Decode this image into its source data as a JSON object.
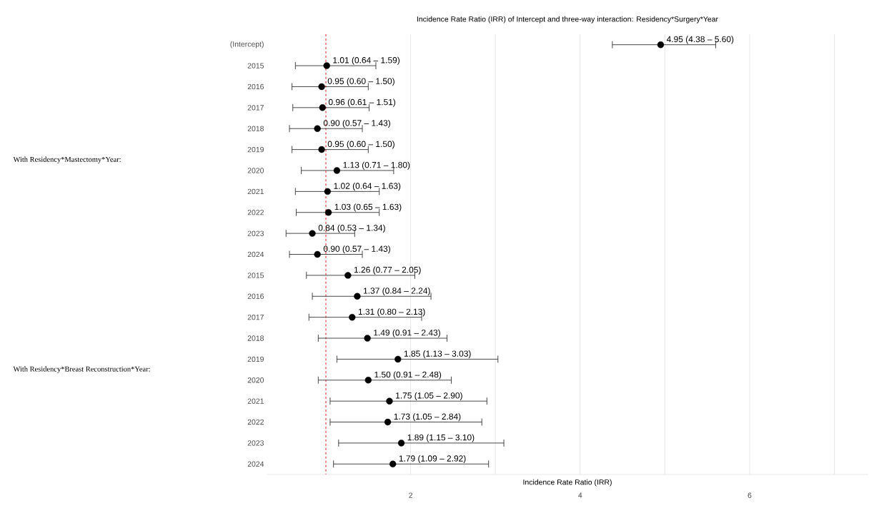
{
  "chart_data": {
    "type": "scatter",
    "orientation": "horizontal",
    "title": "Incidence Rate Ratio (IRR) of Intercept and three-way interaction: Residency*Surgery*Year",
    "xlabel": "Incidence Rate Ratio (IRR)",
    "categories": [
      "(Intercept)",
      "2015",
      "2016",
      "2017",
      "2018",
      "2019",
      "2020",
      "2021",
      "2022",
      "2023",
      "2024",
      "2015",
      "2016",
      "2017",
      "2018",
      "2019",
      "2020",
      "2021",
      "2022",
      "2023",
      "2024"
    ],
    "values": [
      4.95,
      1.01,
      0.95,
      0.96,
      0.9,
      0.95,
      1.13,
      1.02,
      1.03,
      0.84,
      0.9,
      1.26,
      1.37,
      1.31,
      1.49,
      1.85,
      1.5,
      1.75,
      1.73,
      1.89,
      1.79
    ],
    "errors": [
      [
        4.38,
        5.6
      ],
      [
        0.64,
        1.59
      ],
      [
        0.6,
        1.5
      ],
      [
        0.61,
        1.51
      ],
      [
        0.57,
        1.43
      ],
      [
        0.6,
        1.5
      ],
      [
        0.71,
        1.8
      ],
      [
        0.64,
        1.63
      ],
      [
        0.65,
        1.63
      ],
      [
        0.53,
        1.34
      ],
      [
        0.57,
        1.43
      ],
      [
        0.77,
        2.05
      ],
      [
        0.84,
        2.24
      ],
      [
        0.8,
        2.13
      ],
      [
        0.91,
        2.43
      ],
      [
        1.13,
        3.03
      ],
      [
        0.91,
        2.48
      ],
      [
        1.05,
        2.9
      ],
      [
        1.05,
        2.84
      ],
      [
        1.15,
        3.1
      ],
      [
        1.09,
        2.92
      ]
    ],
    "value_labels": [
      "4.95 (4.38 – 5.60)",
      "1.01 (0.64 – 1.59)",
      "0.95 (0.60 – 1.50)",
      "0.96 (0.61 – 1.51)",
      "0.90 (0.57 – 1.43)",
      "0.95 (0.60 – 1.50)",
      "1.13 (0.71 – 1.80)",
      "1.02 (0.64 – 1.63)",
      "1.03 (0.65 – 1.63)",
      "0.84 (0.53 – 1.34)",
      "0.90 (0.57 – 1.43)",
      "1.26 (0.77 – 2.05)",
      "1.37 (0.84 – 2.24)",
      "1.31 (0.80 – 2.13)",
      "1.49 (0.91 – 2.43)",
      "1.85 (1.13 – 3.03)",
      "1.50 (0.91 – 2.48)",
      "1.75 (1.05 – 2.90)",
      "1.73 (1.05 – 2.84)",
      "1.89 (1.15 – 3.10)",
      "1.79 (1.09 – 2.92)"
    ],
    "color": "#000000",
    "marker": "circle",
    "xlim": [
      0.3,
      7.4
    ],
    "xticks": [
      2,
      4,
      6,
      {
        "value": 3,
        "label": null
      },
      {
        "value": 5,
        "label": null
      },
      {
        "value": 7,
        "label": null
      }
    ],
    "grid": "x",
    "ref_lines": [
      {
        "axis": "x",
        "value": 1,
        "color": "#e41a1c",
        "line_style": "dashed"
      }
    ],
    "annotations": [
      "With Residency*Mastectomy*Year:",
      "With Residency*Breast Reconstruction*Year:"
    ]
  }
}
